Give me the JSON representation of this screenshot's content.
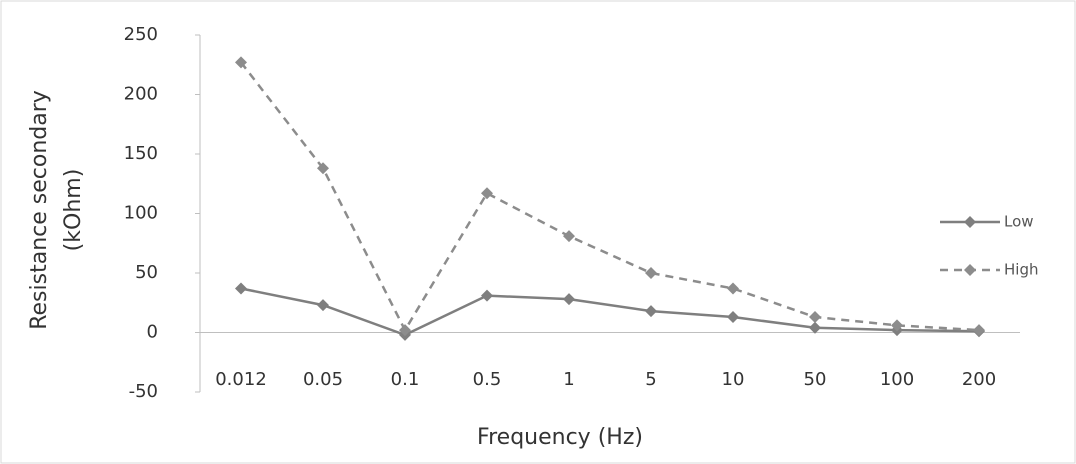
{
  "chart_data": {
    "type": "line",
    "y_label": [
      "Resistance secondary",
      "(kOhm)"
    ],
    "x_label": "Frequency (Hz)",
    "categories": [
      "0.012",
      "0.05",
      "0.1",
      "0.5",
      "1",
      "5",
      "10",
      "50",
      "100",
      "200"
    ],
    "series": [
      {
        "name": "Low",
        "color": "#7f7f7f",
        "dash": false,
        "values": [
          37,
          23,
          -2,
          31,
          28,
          18,
          13,
          4,
          2,
          1
        ]
      },
      {
        "name": "High",
        "color": "#8c8c8c",
        "dash": true,
        "values": [
          227,
          138,
          2,
          117,
          81,
          50,
          37,
          13,
          6,
          2
        ]
      }
    ],
    "ylim": [
      -50,
      250
    ],
    "yticks": [
      -50,
      0,
      50,
      100,
      150,
      200,
      250
    ],
    "grid": false,
    "legend": "right"
  }
}
